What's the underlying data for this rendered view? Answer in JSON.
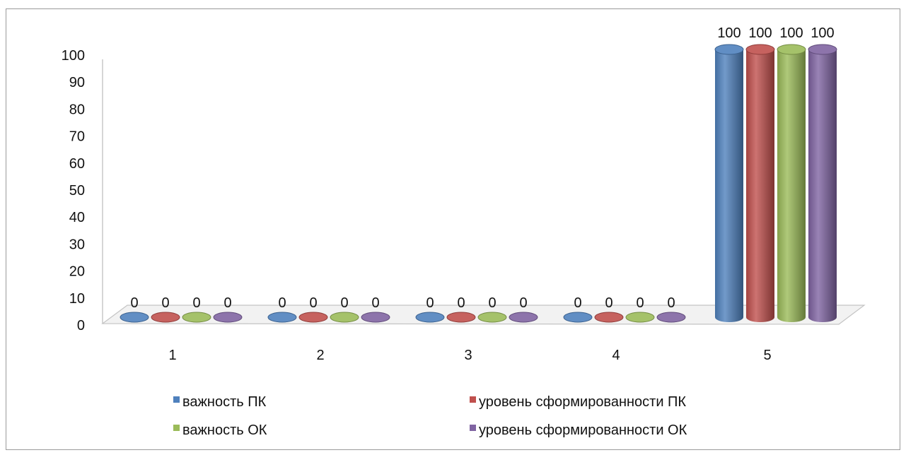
{
  "chart_data": {
    "type": "bar",
    "categories": [
      "1",
      "2",
      "3",
      "4",
      "5"
    ],
    "series": [
      {
        "name": "важность ПК",
        "values": [
          0,
          0,
          0,
          0,
          100
        ],
        "color": "#4f81bd"
      },
      {
        "name": "уровень сформированности ПК",
        "values": [
          0,
          0,
          0,
          0,
          100
        ],
        "color": "#c0504d"
      },
      {
        "name": "важность ОК",
        "values": [
          0,
          0,
          0,
          0,
          100
        ],
        "color": "#9bbb59"
      },
      {
        "name": "уровень сформированности ОК",
        "values": [
          0,
          0,
          0,
          0,
          100
        ],
        "color": "#8064a2"
      }
    ],
    "yticks": [
      "0",
      "10",
      "20",
      "30",
      "40",
      "50",
      "60",
      "70",
      "80",
      "90",
      "100"
    ],
    "ylim": [
      0,
      100
    ],
    "data_labels": true,
    "legend_position": "bottom",
    "style": "3d-cylinder"
  }
}
